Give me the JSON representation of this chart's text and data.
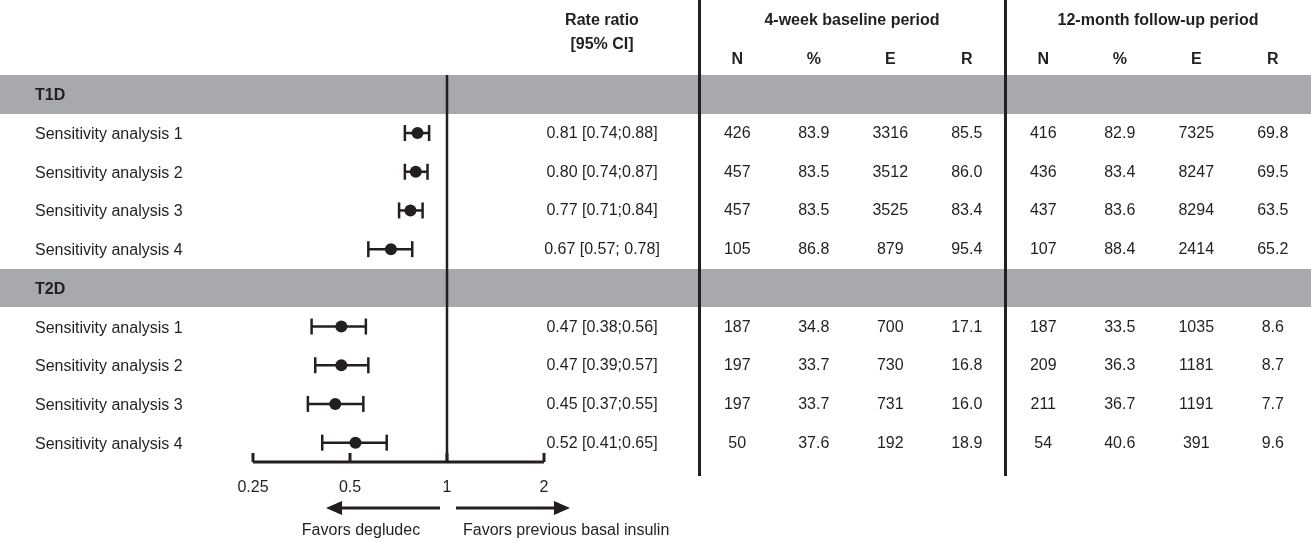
{
  "chart_data": [
    {
      "type": "scatter",
      "orientation": "horizontal",
      "log": "x",
      "marker": "circle",
      "color": "#231f20",
      "categories": [
        "T1D",
        "Sensitivity analysis 1",
        "Sensitivity analysis 2",
        "Sensitivity analysis 3",
        "Sensitivity analysis 4",
        "T2D",
        "Sensitivity analysis 1",
        "Sensitivity analysis 2",
        "Sensitivity analysis 3",
        "Sensitivity analysis 4"
      ],
      "values": [
        null,
        0.81,
        0.8,
        0.77,
        0.67,
        null,
        0.47,
        0.47,
        0.45,
        0.52
      ],
      "errors": [
        null,
        [
          0.74,
          0.88
        ],
        [
          0.74,
          0.87
        ],
        [
          0.71,
          0.84
        ],
        [
          0.57,
          0.78
        ],
        null,
        [
          0.38,
          0.56
        ],
        [
          0.39,
          0.57
        ],
        [
          0.37,
          0.55
        ],
        [
          0.41,
          0.65
        ]
      ],
      "value_labels": [
        null,
        "0.81 [0.74;0.88]",
        "0.80 [0.74;0.87]",
        "0.77 [0.71;0.84]",
        "0.67 [0.57; 0.78]",
        null,
        "0.47 [0.38;0.56]",
        "0.47 [0.39;0.57]",
        "0.45 [0.37;0.55]",
        "0.52 [0.41;0.65]"
      ],
      "xlim": [
        0.25,
        2
      ],
      "xticks": [
        0.25,
        0.5,
        1,
        2
      ],
      "ref_lines": [
        {
          "axis": "x",
          "value": 1,
          "color": "#231f20"
        }
      ],
      "annotations": [
        "Rate ratio [95% CI]",
        "Favors degludec",
        "Favors previous basal insulin"
      ]
    },
    {
      "type": "other",
      "annotations": [
        "4-week baseline period",
        "12-month follow-up period"
      ],
      "categories": [
        "N",
        "%",
        "E",
        "R",
        "N",
        "%",
        "E",
        "R"
      ],
      "cell_labels": [
        null,
        [
          "426",
          "83.9",
          "3316",
          "85.5",
          "416",
          "82.9",
          "7325",
          "69.8"
        ],
        [
          "457",
          "83.5",
          "3512",
          "86.0",
          "436",
          "83.4",
          "8247",
          "69.5"
        ],
        [
          "457",
          "83.5",
          "3525",
          "83.4",
          "437",
          "83.6",
          "8294",
          "63.5"
        ],
        [
          "105",
          "86.8",
          "879",
          "95.4",
          "107",
          "88.4",
          "2414",
          "65.2"
        ],
        null,
        [
          "187",
          "34.8",
          "700",
          "17.1",
          "187",
          "33.5",
          "1035",
          "8.6"
        ],
        [
          "197",
          "33.7",
          "730",
          "16.8",
          "209",
          "36.3",
          "1181",
          "8.7"
        ],
        [
          "197",
          "33.7",
          "731",
          "16.0",
          "211",
          "36.7",
          "1191",
          "7.7"
        ],
        [
          "50",
          "37.6",
          "192",
          "18.9",
          "54",
          "40.6",
          "391",
          "9.6"
        ]
      ]
    }
  ]
}
